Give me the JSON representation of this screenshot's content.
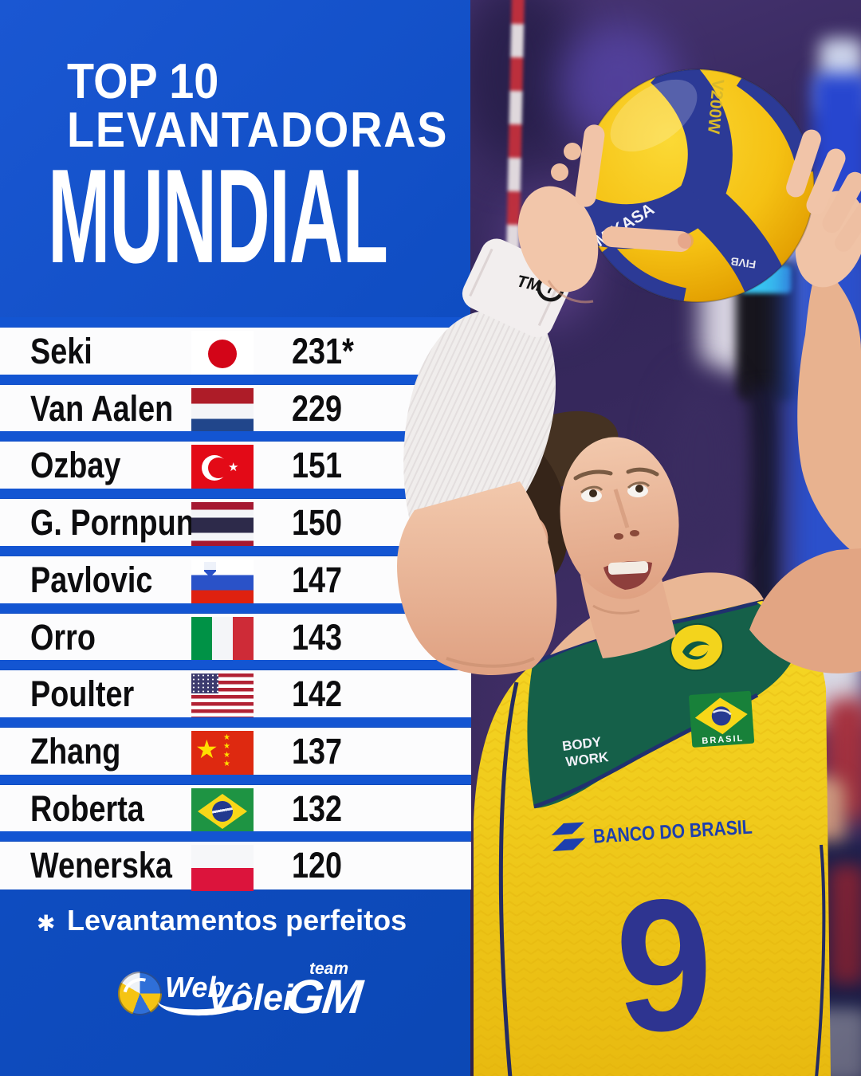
{
  "header": {
    "line1": "TOP 10",
    "line2": "LEVANTADORAS",
    "line3": "MUNDIAL"
  },
  "table": {
    "rows": [
      {
        "name": "Seki",
        "country": "japan",
        "value": "231*"
      },
      {
        "name": "Van Aalen",
        "country": "netherlands",
        "value": "229"
      },
      {
        "name": "Ozbay",
        "country": "turkey",
        "value": "151"
      },
      {
        "name": "G. Pornpun",
        "country": "thailand",
        "value": "150"
      },
      {
        "name": "Pavlovic",
        "country": "slovenia",
        "value": "147"
      },
      {
        "name": "Orro",
        "country": "italy",
        "value": "143"
      },
      {
        "name": "Poulter",
        "country": "usa",
        "value": "142"
      },
      {
        "name": "Zhang",
        "country": "china",
        "value": "137"
      },
      {
        "name": "Roberta",
        "country": "brazil",
        "value": "132"
      },
      {
        "name": "Wenerska",
        "country": "poland",
        "value": "120"
      }
    ]
  },
  "footnote": {
    "marker": "✱",
    "text": "Levantamentos perfeitos"
  },
  "footer": {
    "webvolei": {
      "word1": "Web",
      "word2": "Vôlei"
    },
    "teamgm": {
      "top": "team",
      "main": "GM"
    }
  },
  "photo": {
    "ball": {
      "model": "V200W",
      "brand": "MIKASA",
      "approval": "FIVB"
    },
    "wristband": {
      "brand_letters": "TM",
      "brand_number": "7"
    },
    "jersey": {
      "sponsor": "BANCO DO BRASIL",
      "number": "9",
      "apparel_line1": "BODY",
      "apparel_line2": "WORK",
      "flag_label": "BRASIL"
    }
  },
  "colors": {
    "background_blue": "#0f4dc2",
    "separator_blue": "#1355d2",
    "row_white": "#fcfcfd",
    "text_black": "#0d0d0f",
    "title_white": "#ffffff",
    "ball_yellow": "#f5c113",
    "ball_navy": "#2c3a96",
    "jersey_yellow": "#f6d825",
    "jersey_green": "#156049",
    "jersey_navy": "#2e3490"
  },
  "chart_data": {
    "type": "table",
    "title": "TOP 10 LEVANTADORAS MUNDIAL",
    "categories": [
      "Seki",
      "Van Aalen",
      "Ozbay",
      "G. Pornpun",
      "Pavlovic",
      "Orro",
      "Poulter",
      "Zhang",
      "Roberta",
      "Wenerska"
    ],
    "countries": [
      "Japan",
      "Netherlands",
      "Turkey",
      "Thailand",
      "Slovenia",
      "Italy",
      "USA",
      "China",
      "Brazil",
      "Poland"
    ],
    "values": [
      231,
      229,
      151,
      150,
      147,
      143,
      142,
      137,
      132,
      120
    ],
    "value_labels": [
      "231*",
      "229",
      "151",
      "150",
      "147",
      "143",
      "142",
      "137",
      "132",
      "120"
    ],
    "annotations": [
      "✱ Levantamentos perfeitos (asterisk on Seki's 231)"
    ],
    "legend_position": "none",
    "grid": false
  }
}
